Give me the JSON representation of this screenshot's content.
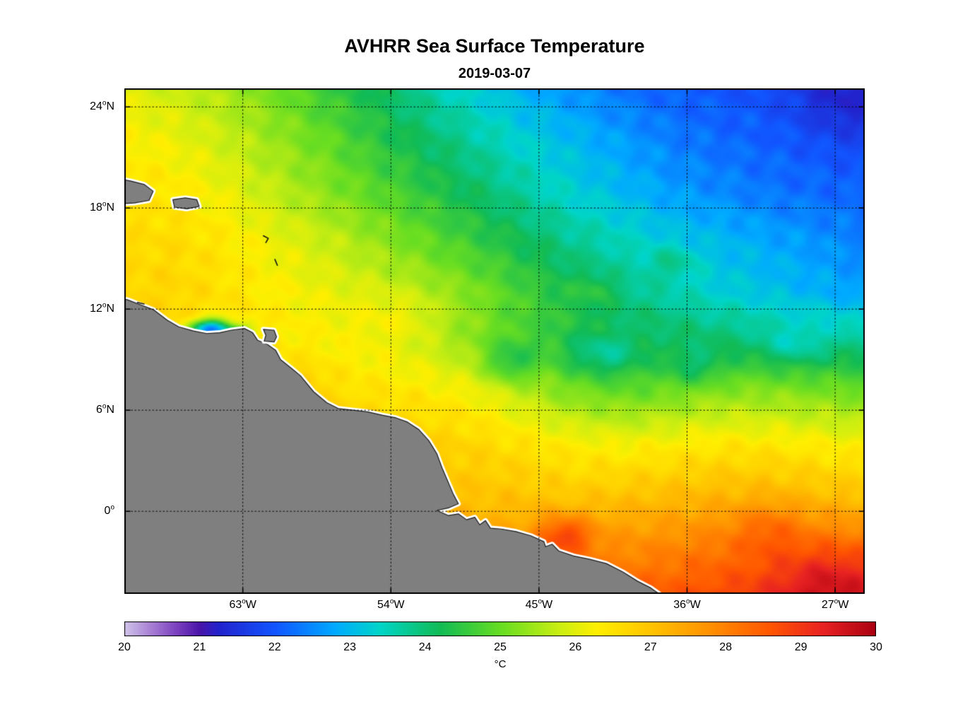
{
  "chart_data": {
    "type": "heatmap",
    "title": "AVHRR Sea Surface Temperature",
    "subtitle": "2019-03-07",
    "units": "°C",
    "legend_position": "bottom-colorbar",
    "grid_on": true,
    "extent": {
      "lon_min": -70.2,
      "lon_max": -25.2,
      "lat_min": -4.9,
      "lat_max": 25.1
    },
    "lat_ticks": [
      {
        "label": "24",
        "hem": "N",
        "value": 24
      },
      {
        "label": "18",
        "hem": "N",
        "value": 18
      },
      {
        "label": "12",
        "hem": "N",
        "value": 12
      },
      {
        "label": "6",
        "hem": "N",
        "value": 6
      },
      {
        "label": "0",
        "hem": "",
        "value": 0
      }
    ],
    "lon_ticks": [
      {
        "label": "63",
        "hem": "W",
        "value": -63
      },
      {
        "label": "54",
        "hem": "W",
        "value": -54
      },
      {
        "label": "45",
        "hem": "W",
        "value": -45
      },
      {
        "label": "36",
        "hem": "W",
        "value": -36
      },
      {
        "label": "27",
        "hem": "W",
        "value": -27
      }
    ],
    "lat_gridlines": [
      24,
      18,
      12,
      6,
      0
    ],
    "lon_gridlines": [
      -63,
      -54,
      -45,
      -36,
      -27
    ],
    "colorbar_ticks": [
      "20",
      "21",
      "22",
      "23",
      "24",
      "25",
      "26",
      "27",
      "28",
      "29",
      "30"
    ],
    "colormap": {
      "min": 20,
      "max": 30,
      "stops": [
        [
          20.0,
          "#cfc3e8"
        ],
        [
          20.35,
          "#a87fd4"
        ],
        [
          20.7,
          "#7a3fbe"
        ],
        [
          21.0,
          "#4a14a8"
        ],
        [
          21.25,
          "#2222cc"
        ],
        [
          22.0,
          "#1155ff"
        ],
        [
          22.8,
          "#00aaff"
        ],
        [
          23.4,
          "#00d5c8"
        ],
        [
          24.2,
          "#11bb55"
        ],
        [
          25.0,
          "#66dd22"
        ],
        [
          25.8,
          "#ccee11"
        ],
        [
          26.3,
          "#ffee00"
        ],
        [
          27.0,
          "#ffc400"
        ],
        [
          27.8,
          "#ff9000"
        ],
        [
          28.6,
          "#ff5500"
        ],
        [
          29.3,
          "#e82222"
        ],
        [
          30.0,
          "#aa0011"
        ]
      ]
    },
    "land_color": "#7f7f7f",
    "coast_halo_color": "#ffffff",
    "coast_line_color": "#1a1a1a",
    "grid": {
      "lons": [
        -70,
        -67,
        -64,
        -61,
        -58,
        -55,
        -52,
        -49,
        -46,
        -43,
        -40,
        -37,
        -34,
        -31,
        -28,
        -25
      ],
      "lats": [
        25,
        22,
        19,
        16,
        13,
        10,
        7,
        4,
        1,
        -2,
        -5
      ],
      "sst": [
        [
          26.0,
          25.8,
          25.5,
          25.1,
          24.6,
          24.2,
          23.7,
          23.3,
          22.9,
          22.6,
          22.3,
          22.1,
          22.0,
          21.9,
          21.8,
          21.7
        ],
        [
          26.3,
          26.1,
          25.8,
          25.4,
          25.0,
          24.5,
          24.1,
          23.7,
          23.3,
          23.0,
          22.7,
          22.4,
          22.2,
          22.1,
          22.0,
          21.9
        ],
        [
          26.5,
          26.4,
          26.1,
          25.7,
          25.3,
          24.9,
          24.5,
          24.1,
          23.7,
          23.3,
          23.0,
          22.7,
          22.5,
          22.3,
          22.2,
          22.1
        ],
        [
          26.6,
          26.6,
          26.4,
          26.1,
          25.8,
          25.4,
          25.0,
          24.6,
          24.2,
          23.8,
          23.5,
          23.2,
          23.0,
          22.8,
          22.6,
          22.4
        ],
        [
          26.7,
          26.7,
          26.5,
          26.3,
          26.1,
          25.9,
          25.6,
          25.2,
          24.7,
          24.3,
          23.9,
          23.6,
          23.3,
          23.1,
          22.9,
          22.7
        ],
        [
          26.8,
          26.6,
          26.4,
          26.4,
          26.3,
          26.1,
          25.8,
          25.3,
          24.8,
          24.5,
          24.3,
          24.2,
          24.1,
          24.0,
          23.9,
          23.8
        ],
        [
          27.0,
          26.9,
          26.8,
          26.7,
          26.6,
          26.5,
          26.4,
          26.2,
          25.7,
          25.2,
          25.0,
          25.1,
          25.3,
          25.3,
          25.2,
          25.1
        ],
        [
          27.2,
          27.1,
          27.1,
          27.0,
          26.9,
          26.9,
          26.8,
          26.7,
          26.5,
          26.3,
          26.2,
          26.3,
          26.4,
          26.4,
          26.3,
          26.2
        ],
        [
          27.3,
          27.3,
          27.2,
          27.2,
          27.1,
          27.1,
          27.1,
          27.0,
          27.0,
          26.9,
          27.0,
          27.1,
          27.2,
          27.2,
          27.1,
          27.0
        ],
        [
          27.4,
          27.4,
          27.4,
          27.4,
          27.4,
          27.4,
          27.4,
          27.5,
          27.6,
          27.9,
          27.8,
          27.9,
          28.1,
          28.2,
          28.2,
          28.2
        ],
        [
          27.5,
          27.5,
          27.5,
          27.5,
          27.5,
          27.6,
          27.6,
          27.8,
          28.1,
          28.4,
          28.4,
          28.6,
          28.8,
          29.0,
          29.1,
          29.2
        ]
      ]
    },
    "anomalies": [
      {
        "lon": -65.0,
        "lat": 10.8,
        "amp": -4.2,
        "rlon": 1.2,
        "rlat": 0.55
      },
      {
        "lon": -63.4,
        "lat": 10.6,
        "amp": -2.0,
        "rlon": 0.8,
        "rlat": 0.4
      },
      {
        "lon": -46.8,
        "lat": 8.8,
        "amp": -0.9,
        "rlon": 1.5,
        "rlat": 1.1
      },
      {
        "lon": -41.2,
        "lat": 9.2,
        "amp": -0.8,
        "rlon": 2.3,
        "rlat": 1.2
      },
      {
        "lon": -35.5,
        "lat": 8.6,
        "amp": -0.6,
        "rlon": 1.6,
        "rlat": 1.0
      },
      {
        "lon": -29.5,
        "lat": 9.8,
        "amp": -0.5,
        "rlon": 2.0,
        "rlat": 1.2
      },
      {
        "lon": -26.5,
        "lat": 24.5,
        "amp": -0.5,
        "rlon": 3.0,
        "rlat": 2.5
      },
      {
        "lon": -43.5,
        "lat": -1.4,
        "amp": 1.2,
        "rlon": 1.6,
        "rlat": 1.1
      },
      {
        "lon": -27.5,
        "lat": -4.0,
        "amp": 0.7,
        "rlon": 3.0,
        "rlat": 2.0
      },
      {
        "lon": -31.0,
        "lat": -1.0,
        "amp": 0.5,
        "rlon": 2.0,
        "rlat": 1.5
      },
      {
        "lon": -59.5,
        "lat": 7.6,
        "amp": 0.4,
        "rlon": 1.2,
        "rlat": 0.8
      },
      {
        "lon": -53.5,
        "lat": 11.5,
        "amp": 0.3,
        "rlon": 2.5,
        "rlat": 1.5
      },
      {
        "lon": -36.8,
        "lat": 14.8,
        "amp": 0.5,
        "rlon": 1.3,
        "rlat": 0.9
      },
      {
        "lon": -41.5,
        "lat": 13.2,
        "amp": 0.4,
        "rlon": 1.2,
        "rlat": 0.8
      }
    ],
    "coastline": [
      [
        -71.5,
        12.9
      ],
      [
        -70.0,
        12.55
      ],
      [
        -69.2,
        12.25
      ],
      [
        -68.4,
        11.95
      ],
      [
        -67.6,
        11.35
      ],
      [
        -66.9,
        10.95
      ],
      [
        -66.0,
        10.7
      ],
      [
        -65.2,
        10.55
      ],
      [
        -64.4,
        10.6
      ],
      [
        -63.7,
        10.75
      ],
      [
        -62.9,
        10.85
      ],
      [
        -62.4,
        10.6
      ],
      [
        -62.1,
        10.15
      ],
      [
        -61.5,
        9.9
      ],
      [
        -61.0,
        9.55
      ],
      [
        -60.7,
        9.0
      ],
      [
        -60.0,
        8.45
      ],
      [
        -59.5,
        8.05
      ],
      [
        -58.7,
        7.1
      ],
      [
        -57.9,
        6.45
      ],
      [
        -57.2,
        6.1
      ],
      [
        -56.3,
        6.0
      ],
      [
        -55.4,
        5.9
      ],
      [
        -54.5,
        5.7
      ],
      [
        -53.7,
        5.55
      ],
      [
        -53.0,
        5.3
      ],
      [
        -52.3,
        4.85
      ],
      [
        -51.7,
        4.2
      ],
      [
        -51.2,
        3.4
      ],
      [
        -50.9,
        2.6
      ],
      [
        -50.55,
        1.8
      ],
      [
        -50.2,
        1.0
      ],
      [
        -49.9,
        0.45
      ],
      [
        -50.5,
        0.2
      ],
      [
        -51.2,
        0.05
      ],
      [
        -50.5,
        -0.25
      ],
      [
        -49.9,
        -0.15
      ],
      [
        -49.4,
        -0.5
      ],
      [
        -48.9,
        -0.35
      ],
      [
        -48.6,
        -0.8
      ],
      [
        -48.25,
        -0.55
      ],
      [
        -47.95,
        -1.0
      ],
      [
        -47.3,
        -1.05
      ],
      [
        -46.4,
        -1.2
      ],
      [
        -45.5,
        -1.45
      ],
      [
        -44.7,
        -1.8
      ],
      [
        -44.6,
        -2.1
      ],
      [
        -44.2,
        -1.95
      ],
      [
        -43.8,
        -2.35
      ],
      [
        -42.9,
        -2.65
      ],
      [
        -41.9,
        -2.85
      ],
      [
        -40.9,
        -3.1
      ],
      [
        -39.9,
        -3.6
      ],
      [
        -39.0,
        -4.15
      ],
      [
        -38.2,
        -4.55
      ],
      [
        -37.4,
        -5.1
      ],
      [
        -36.9,
        -6.5
      ],
      [
        -71.5,
        -6.5
      ]
    ],
    "islands": [
      {
        "name": "hispaniola",
        "pts": [
          [
            -71.5,
            19.9
          ],
          [
            -69.8,
            19.6
          ],
          [
            -69.0,
            19.4
          ],
          [
            -68.45,
            19.0
          ],
          [
            -68.7,
            18.45
          ],
          [
            -69.6,
            18.3
          ],
          [
            -70.6,
            18.25
          ],
          [
            -71.5,
            18.4
          ]
        ]
      },
      {
        "name": "puerto-rico",
        "pts": [
          [
            -67.25,
            18.5
          ],
          [
            -66.5,
            18.6
          ],
          [
            -65.8,
            18.5
          ],
          [
            -65.65,
            18.1
          ],
          [
            -66.4,
            17.95
          ],
          [
            -67.15,
            18.05
          ]
        ]
      },
      {
        "name": "trinidad",
        "pts": [
          [
            -61.75,
            10.8
          ],
          [
            -61.1,
            10.75
          ],
          [
            -60.95,
            10.35
          ],
          [
            -61.1,
            10.05
          ],
          [
            -61.7,
            10.1
          ],
          [
            -61.6,
            10.45
          ]
        ]
      }
    ],
    "minor_islands": [
      {
        "name": "guadeloupe",
        "pts": [
          [
            -61.75,
            16.35
          ],
          [
            -61.45,
            16.2
          ],
          [
            -61.6,
            15.95
          ]
        ]
      },
      {
        "name": "martinique",
        "pts": [
          [
            -61.05,
            14.95
          ],
          [
            -60.9,
            14.6
          ]
        ]
      },
      {
        "name": "curacao-bonaire",
        "pts": [
          [
            -69.4,
            12.4
          ],
          [
            -69.0,
            12.3
          ]
        ]
      }
    ]
  }
}
